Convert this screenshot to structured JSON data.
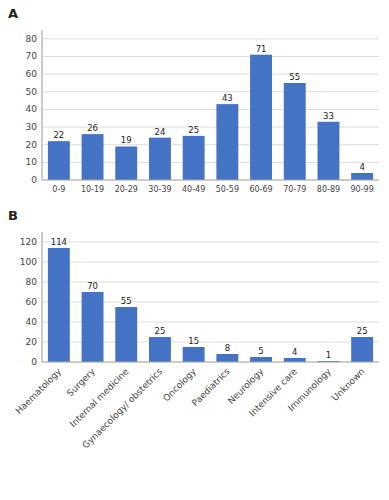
{
  "chart_data": [
    {
      "type": "bar",
      "title": "A",
      "categories": [
        "0-9",
        "10-19",
        "20-29",
        "30-39",
        "40-49",
        "50-59",
        "60-69",
        "70-79",
        "80-89",
        "90-99"
      ],
      "values": [
        22,
        26,
        19,
        24,
        25,
        43,
        71,
        55,
        33,
        4
      ],
      "color": "#4472C4",
      "ylim": [
        0,
        85
      ],
      "yticks": [
        0,
        10,
        20,
        30,
        40,
        50,
        60,
        70,
        80
      ],
      "grid": true,
      "data_labels": true
    },
    {
      "type": "bar",
      "title": "B",
      "categories": [
        "Haematology",
        "Surgery",
        "Internal medicine",
        "Gynaecology/ obstetrics",
        "Oncology",
        "Paediatrics",
        "Neurology",
        "Intensive care",
        "Immunology",
        "Unknown"
      ],
      "values": [
        114,
        70,
        55,
        25,
        15,
        8,
        5,
        4,
        1,
        25
      ],
      "color": "#4472C4",
      "ylim": [
        0,
        130
      ],
      "yticks": [
        0,
        20,
        40,
        60,
        80,
        100,
        120
      ],
      "grid": true,
      "data_labels": true
    }
  ]
}
